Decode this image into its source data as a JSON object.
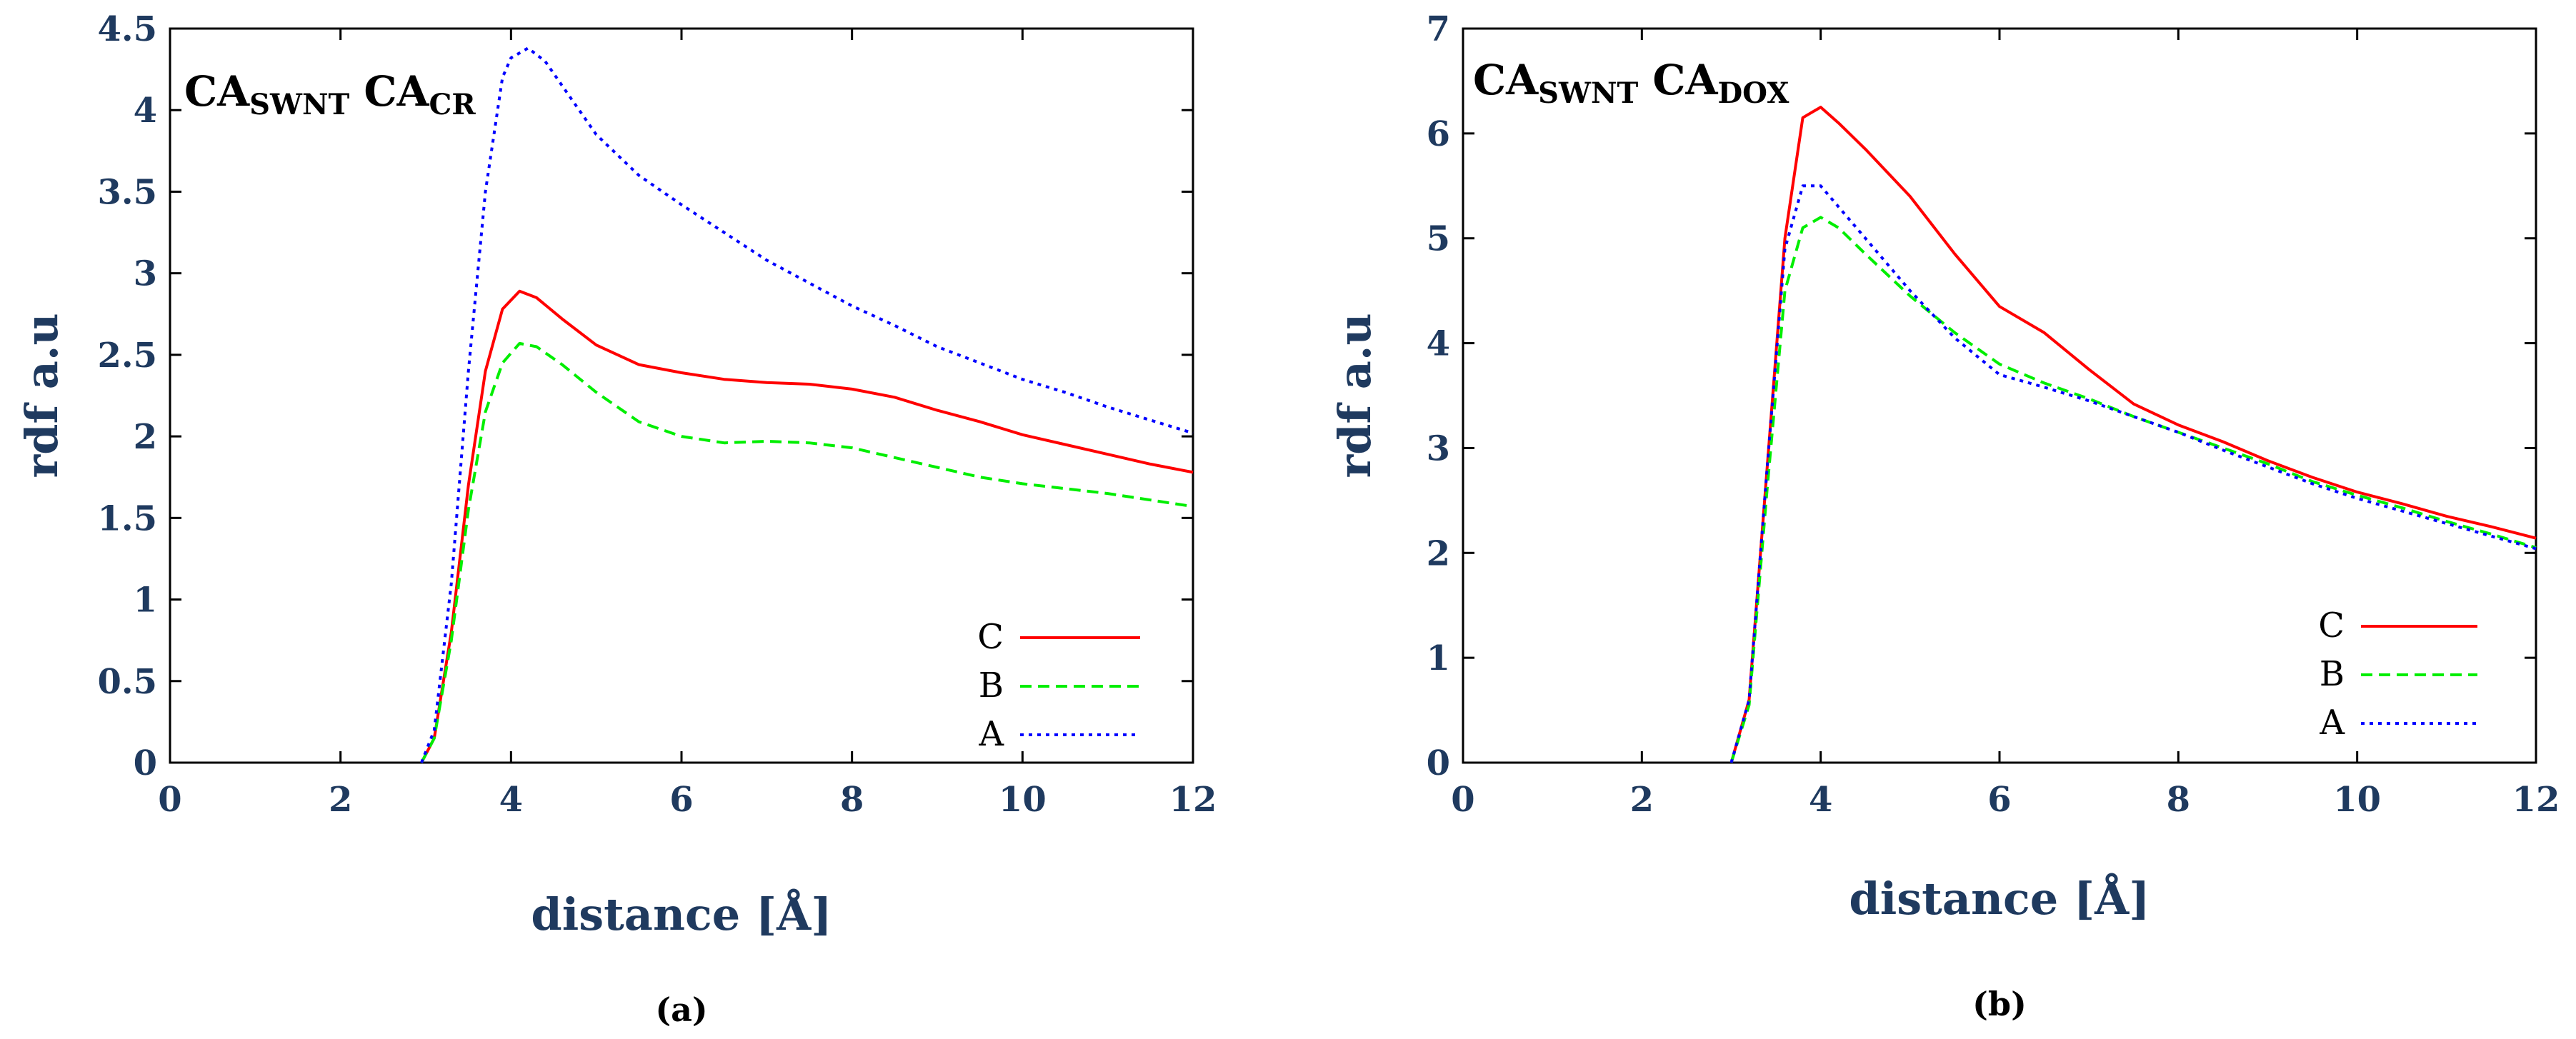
{
  "chart_data": [
    {
      "panel": "(a)",
      "type": "line",
      "title": "CASWNT CACR",
      "title_parts": [
        {
          "base": "CA",
          "sub": "SWNT"
        },
        {
          "base": "CA",
          "sub": "CR"
        }
      ],
      "xlabel": "distance [Å]",
      "ylabel": "rdf a.u",
      "xlim": [
        0,
        12
      ],
      "ylim": [
        0,
        4.5
      ],
      "xticks": [
        0,
        2,
        4,
        6,
        8,
        10,
        12
      ],
      "xtick_labels": [
        "0",
        "2",
        "4",
        "6",
        "8",
        "10",
        "12"
      ],
      "yticks": [
        0,
        0.5,
        1,
        1.5,
        2,
        2.5,
        3,
        3.5,
        4,
        4.5
      ],
      "ytick_labels": [
        "0",
        "0.5",
        "1",
        "1.5",
        "2",
        "2.5",
        "3",
        "3.5",
        "4",
        "4.5"
      ],
      "legend_position": "bottom-right",
      "series": [
        {
          "name": "C",
          "color": "#ff0000",
          "dash": "solid",
          "x": [
            2.95,
            3.1,
            3.3,
            3.5,
            3.7,
            3.9,
            4.1,
            4.3,
            4.6,
            5.0,
            5.5,
            6.0,
            6.5,
            7.0,
            7.5,
            8.0,
            8.5,
            9.0,
            9.5,
            10.0,
            10.5,
            11.0,
            11.5,
            12.0
          ],
          "y": [
            0.0,
            0.15,
            0.8,
            1.7,
            2.4,
            2.78,
            2.89,
            2.85,
            2.72,
            2.56,
            2.44,
            2.39,
            2.35,
            2.33,
            2.32,
            2.29,
            2.24,
            2.16,
            2.09,
            2.01,
            1.95,
            1.89,
            1.83,
            1.78
          ]
        },
        {
          "name": "B",
          "color": "#00ee00",
          "dash": "dashed",
          "x": [
            2.95,
            3.1,
            3.3,
            3.5,
            3.7,
            3.9,
            4.1,
            4.3,
            4.6,
            5.0,
            5.5,
            6.0,
            6.5,
            7.0,
            7.5,
            8.0,
            8.5,
            9.0,
            9.5,
            10.0,
            10.5,
            11.0,
            11.5,
            12.0
          ],
          "y": [
            0.0,
            0.15,
            0.75,
            1.55,
            2.15,
            2.45,
            2.57,
            2.55,
            2.44,
            2.27,
            2.09,
            2.0,
            1.96,
            1.97,
            1.96,
            1.93,
            1.87,
            1.81,
            1.75,
            1.71,
            1.68,
            1.65,
            1.61,
            1.57
          ]
        },
        {
          "name": "A",
          "color": "#0000ff",
          "dash": "dotted",
          "x": [
            2.95,
            3.1,
            3.3,
            3.5,
            3.7,
            3.9,
            4.0,
            4.2,
            4.4,
            4.6,
            5.0,
            5.5,
            6.0,
            6.5,
            7.0,
            7.5,
            8.0,
            8.5,
            9.0,
            9.5,
            10.0,
            10.5,
            11.0,
            11.5,
            12.0
          ],
          "y": [
            0.0,
            0.2,
            1.1,
            2.4,
            3.5,
            4.2,
            4.32,
            4.38,
            4.3,
            4.15,
            3.85,
            3.6,
            3.42,
            3.25,
            3.08,
            2.94,
            2.8,
            2.68,
            2.55,
            2.45,
            2.35,
            2.27,
            2.18,
            2.1,
            2.02
          ]
        }
      ]
    },
    {
      "panel": "(b)",
      "type": "line",
      "title": "CASWNT CADOX",
      "title_parts": [
        {
          "base": "CA",
          "sub": "SWNT"
        },
        {
          "base": "CA",
          "sub": "DOX"
        }
      ],
      "xlabel": "distance [Å]",
      "ylabel": "rdf a.u",
      "xlim": [
        0,
        12
      ],
      "ylim": [
        0,
        7
      ],
      "xticks": [
        0,
        2,
        4,
        6,
        8,
        10,
        12
      ],
      "xtick_labels": [
        "0",
        "2",
        "4",
        "6",
        "8",
        "10",
        "12"
      ],
      "yticks": [
        0,
        1,
        2,
        3,
        4,
        5,
        6,
        7
      ],
      "ytick_labels": [
        "0",
        "1",
        "2",
        "3",
        "4",
        "5",
        "6",
        "7"
      ],
      "legend_position": "bottom-right",
      "series": [
        {
          "name": "C",
          "color": "#ff0000",
          "dash": "solid",
          "x": [
            3.0,
            3.2,
            3.4,
            3.6,
            3.8,
            4.0,
            4.2,
            4.5,
            5.0,
            5.5,
            6.0,
            6.5,
            7.0,
            7.5,
            8.0,
            8.5,
            9.0,
            9.5,
            10.0,
            10.5,
            11.0,
            11.5,
            12.0
          ],
          "y": [
            0.0,
            0.6,
            2.8,
            5.0,
            6.15,
            6.25,
            6.1,
            5.85,
            5.4,
            4.85,
            4.35,
            4.1,
            3.75,
            3.42,
            3.22,
            3.06,
            2.88,
            2.72,
            2.58,
            2.47,
            2.35,
            2.25,
            2.14
          ]
        },
        {
          "name": "B",
          "color": "#00ee00",
          "dash": "dashed",
          "x": [
            3.0,
            3.2,
            3.4,
            3.6,
            3.8,
            4.0,
            4.2,
            4.5,
            5.0,
            5.5,
            6.0,
            6.5,
            7.0,
            7.5,
            8.0,
            8.5,
            9.0,
            9.5,
            10.0,
            10.5,
            11.0,
            11.5,
            12.0
          ],
          "y": [
            0.0,
            0.55,
            2.6,
            4.5,
            5.1,
            5.2,
            5.1,
            4.85,
            4.45,
            4.1,
            3.8,
            3.62,
            3.47,
            3.3,
            3.15,
            3.0,
            2.85,
            2.68,
            2.55,
            2.43,
            2.3,
            2.18,
            2.05
          ]
        },
        {
          "name": "A",
          "color": "#0000ff",
          "dash": "dotted",
          "x": [
            3.0,
            3.2,
            3.4,
            3.6,
            3.8,
            4.0,
            4.2,
            4.5,
            5.0,
            5.5,
            6.0,
            6.5,
            7.0,
            7.5,
            8.0,
            8.5,
            9.0,
            9.5,
            10.0,
            10.5,
            11.0,
            11.5,
            12.0
          ],
          "y": [
            0.0,
            0.6,
            2.8,
            4.9,
            5.5,
            5.5,
            5.3,
            5.0,
            4.5,
            4.05,
            3.7,
            3.58,
            3.45,
            3.3,
            3.15,
            2.98,
            2.82,
            2.66,
            2.52,
            2.4,
            2.28,
            2.16,
            2.04
          ]
        }
      ]
    }
  ]
}
